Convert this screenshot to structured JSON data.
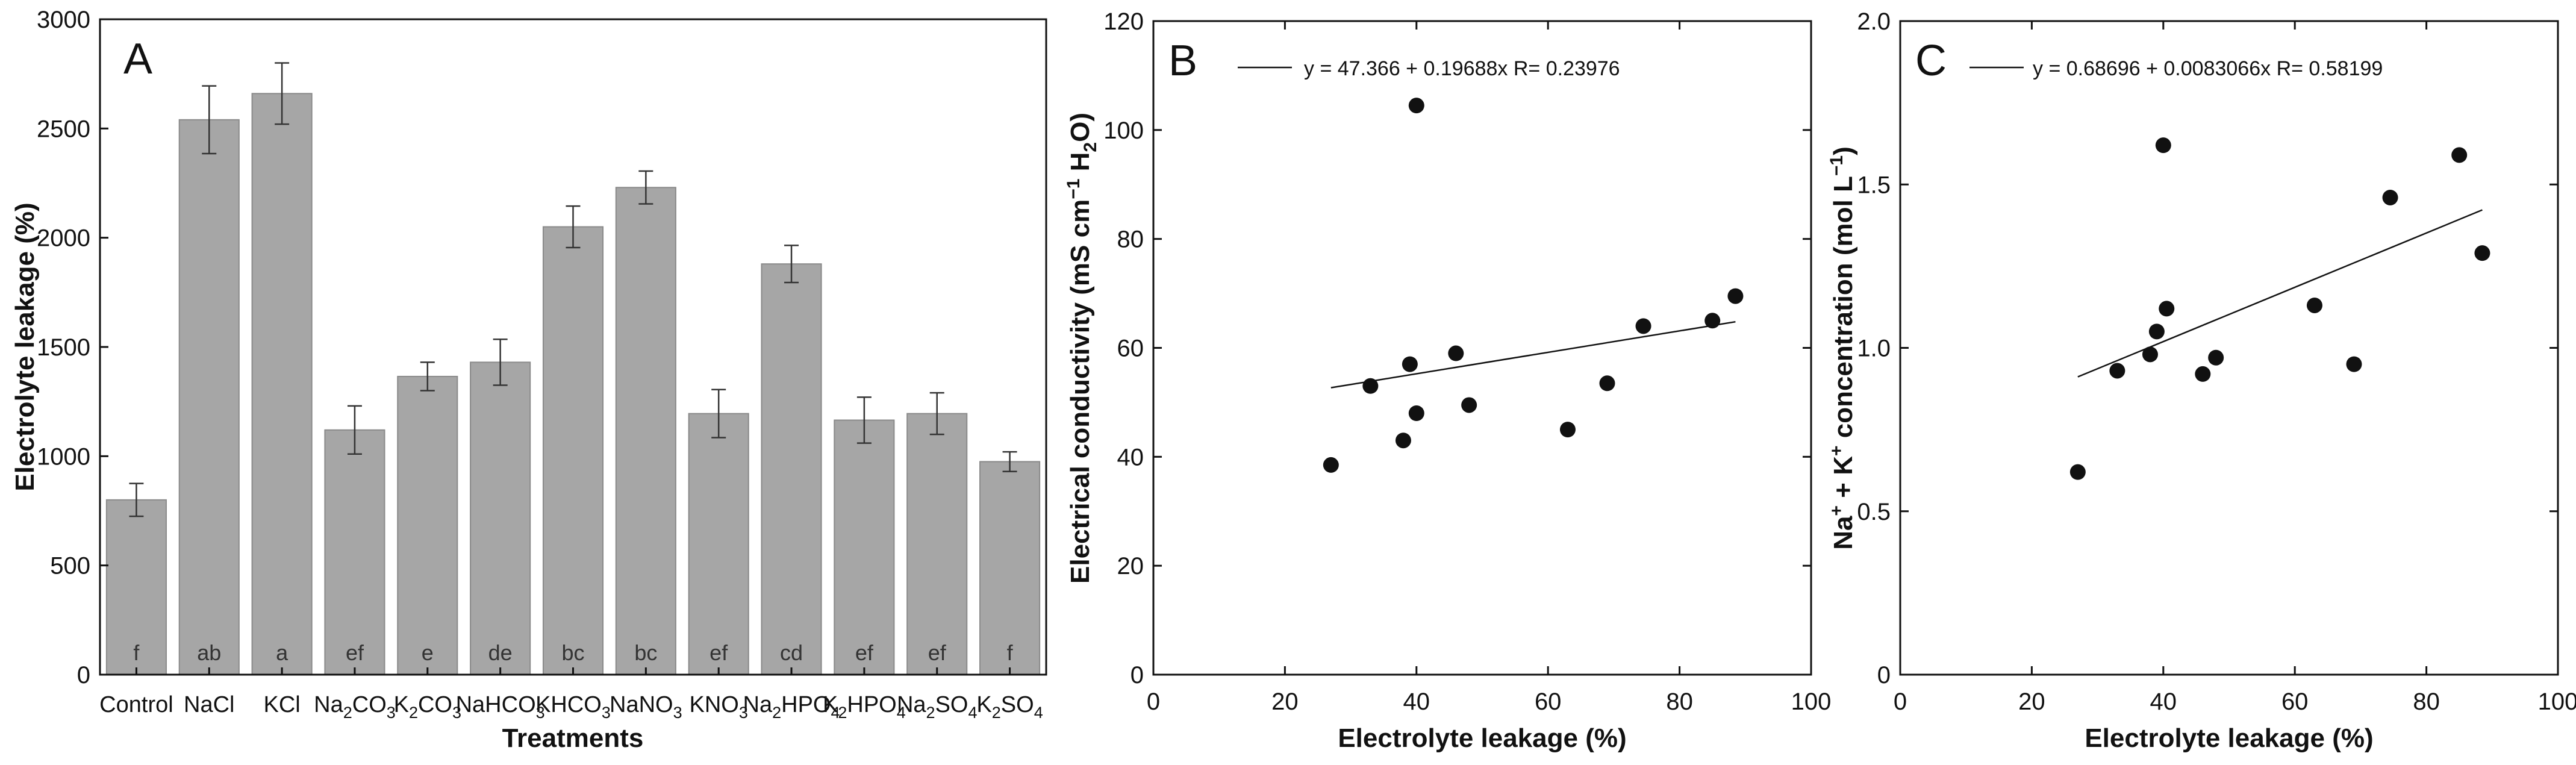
{
  "chart_data": [
    {
      "panel": "A",
      "type": "bar",
      "xlabel": "Treatments",
      "ylabel": "Electrolyte leakage (%)",
      "ylim": [
        0,
        3000
      ],
      "yticks": [
        0,
        500,
        1000,
        1500,
        2000,
        2500,
        3000
      ],
      "ytick_labels": [
        "0",
        "500",
        "1000",
        "1500",
        "2000",
        "2500",
        "3000"
      ],
      "categories": [
        {
          "base": "Control",
          "sub": "",
          "mid": "",
          "sub2": ""
        },
        {
          "base": "NaCl",
          "sub": "",
          "mid": "",
          "sub2": ""
        },
        {
          "base": "KCl",
          "sub": "",
          "mid": "",
          "sub2": ""
        },
        {
          "base": "Na",
          "sub": "2",
          "mid": "CO",
          "sub2": "3"
        },
        {
          "base": "K",
          "sub": "2",
          "mid": "CO",
          "sub2": "3"
        },
        {
          "base": "NaHCO",
          "sub": "3",
          "mid": "",
          "sub2": ""
        },
        {
          "base": "KHCO",
          "sub": "3",
          "mid": "",
          "sub2": ""
        },
        {
          "base": "NaNO",
          "sub": "3",
          "mid": "",
          "sub2": ""
        },
        {
          "base": "KNO",
          "sub": "3",
          "mid": "",
          "sub2": ""
        },
        {
          "base": "Na",
          "sub": "2",
          "mid": "HPO",
          "sub2": "4"
        },
        {
          "base": "K",
          "sub": "2",
          "mid": "HPO",
          "sub2": "4"
        },
        {
          "base": "Na",
          "sub": "2",
          "mid": "SO",
          "sub2": "4"
        },
        {
          "base": "K",
          "sub": "2",
          "mid": "SO",
          "sub2": "4"
        }
      ],
      "values": [
        800,
        2540,
        2660,
        1120,
        1365,
        1430,
        2050,
        2230,
        1195,
        1880,
        1165,
        1195,
        975
      ],
      "errors": [
        75,
        155,
        140,
        110,
        65,
        105,
        95,
        75,
        110,
        85,
        105,
        95,
        45
      ],
      "letters": [
        "f",
        "ab",
        "a",
        "ef",
        "e",
        "de",
        "bc",
        "bc",
        "ef",
        "cd",
        "ef",
        "ef",
        "f"
      ]
    },
    {
      "panel": "B",
      "type": "scatter",
      "xlabel": "Electrolyte leakage (%)",
      "ylabel": "Electrical conductivity (mS cm",
      "ylabel_sup": "−1",
      "ylabel_mid": " H",
      "ylabel_sub": "2",
      "ylabel_end": "O)",
      "xlim": [
        0,
        100
      ],
      "ylim": [
        0,
        120
      ],
      "xticks": [
        0,
        20,
        40,
        60,
        80,
        100
      ],
      "xtick_labels": [
        "0",
        "20",
        "40",
        "60",
        "80",
        "100"
      ],
      "yticks": [
        0,
        20,
        40,
        60,
        80,
        100,
        120
      ],
      "ytick_labels": [
        "0",
        "20",
        "40",
        "60",
        "80",
        "100",
        "120"
      ],
      "x": [
        27,
        33,
        38,
        39,
        40,
        40,
        46,
        48,
        63,
        69,
        74.5,
        85,
        88.5
      ],
      "y": [
        38.5,
        53,
        43,
        57,
        104.5,
        48,
        59,
        49.5,
        45,
        53.5,
        64,
        65,
        69.5
      ],
      "fit": {
        "intercept": 47.366,
        "slope": 0.19688,
        "x_range": [
          27,
          88.5
        ]
      },
      "equation": "y = 47.366 + 0.19688x   R= 0.23976"
    },
    {
      "panel": "C",
      "type": "scatter",
      "xlabel": "Electrolyte leakage (%)",
      "ylabel_pre": "Na",
      "ylabel_sup1": "+",
      "ylabel_mid": " + K",
      "ylabel_sup2": "+",
      "ylabel_post": " concentration (mol L",
      "ylabel_sup3": "−1",
      "ylabel_end": ")",
      "xlim": [
        0,
        100
      ],
      "ylim": [
        0,
        2.0
      ],
      "xticks": [
        0,
        20,
        40,
        60,
        80,
        100
      ],
      "xtick_labels": [
        "0",
        "20",
        "40",
        "60",
        "80",
        "100"
      ],
      "yticks": [
        0,
        0.5,
        1.0,
        1.5,
        2.0
      ],
      "ytick_labels": [
        "0",
        "0.5",
        "1.0",
        "1.5",
        "2.0"
      ],
      "x": [
        27,
        33,
        38,
        39,
        40,
        40.5,
        46,
        48,
        63,
        69,
        74.5,
        85,
        88.5
      ],
      "y": [
        0.62,
        0.93,
        0.98,
        1.05,
        1.62,
        1.12,
        0.92,
        0.97,
        1.13,
        0.95,
        1.46,
        1.59,
        1.29
      ],
      "fit": {
        "intercept": 0.68696,
        "slope": 0.0083066,
        "x_range": [
          27,
          88.5
        ]
      },
      "equation": "y = 0.68696 + 0.0083066x   R= 0.58199"
    }
  ]
}
